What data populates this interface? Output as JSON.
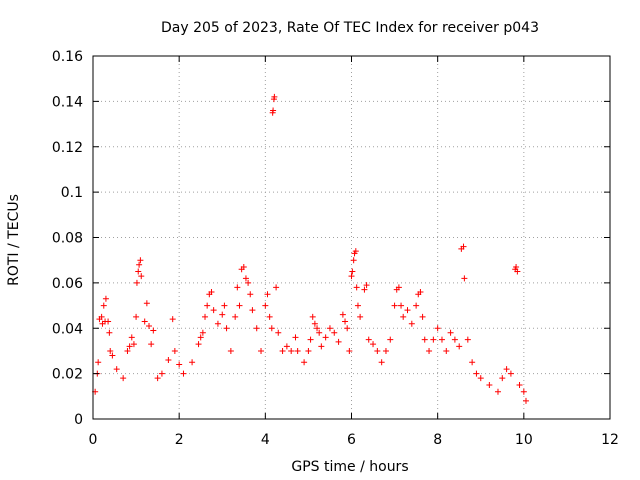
{
  "chart_data": {
    "type": "scatter",
    "title": "Day 205 of 2023, Rate Of TEC Index for receiver p043",
    "xlabel": "GPS time / hours",
    "ylabel": "ROTI / TECUs",
    "xlim": [
      0,
      12
    ],
    "ylim": [
      0,
      0.16
    ],
    "xticks": [
      0,
      2,
      4,
      6,
      8,
      10,
      12
    ],
    "xtick_labels": [
      "0",
      "2",
      "4",
      "6",
      "8",
      "10",
      "12"
    ],
    "yticks": [
      0,
      0.02,
      0.04,
      0.06,
      0.08,
      0.1,
      0.12,
      0.14,
      0.16
    ],
    "ytick_labels": [
      "0",
      "0.02",
      "0.04",
      "0.06",
      "0.08",
      "0.1",
      "0.12",
      "0.14",
      "0.16"
    ],
    "grid": true,
    "marker": "+",
    "color": "#ff0000",
    "series": [
      {
        "name": "ROTI",
        "points": [
          [
            0.05,
            0.012
          ],
          [
            0.1,
            0.02
          ],
          [
            0.12,
            0.025
          ],
          [
            0.15,
            0.044
          ],
          [
            0.2,
            0.045
          ],
          [
            0.22,
            0.042
          ],
          [
            0.25,
            0.05
          ],
          [
            0.28,
            0.043
          ],
          [
            0.3,
            0.053
          ],
          [
            0.35,
            0.043
          ],
          [
            0.38,
            0.038
          ],
          [
            0.4,
            0.03
          ],
          [
            0.45,
            0.028
          ],
          [
            0.55,
            0.022
          ],
          [
            0.7,
            0.018
          ],
          [
            0.8,
            0.03
          ],
          [
            0.85,
            0.032
          ],
          [
            0.9,
            0.036
          ],
          [
            0.95,
            0.033
          ],
          [
            1.0,
            0.045
          ],
          [
            1.02,
            0.06
          ],
          [
            1.05,
            0.065
          ],
          [
            1.07,
            0.068
          ],
          [
            1.1,
            0.07
          ],
          [
            1.12,
            0.063
          ],
          [
            1.2,
            0.043
          ],
          [
            1.25,
            0.051
          ],
          [
            1.3,
            0.041
          ],
          [
            1.35,
            0.033
          ],
          [
            1.4,
            0.039
          ],
          [
            1.5,
            0.018
          ],
          [
            1.6,
            0.02
          ],
          [
            1.75,
            0.026
          ],
          [
            1.85,
            0.044
          ],
          [
            1.9,
            0.03
          ],
          [
            2.0,
            0.024
          ],
          [
            2.1,
            0.02
          ],
          [
            2.3,
            0.025
          ],
          [
            2.45,
            0.033
          ],
          [
            2.5,
            0.036
          ],
          [
            2.55,
            0.038
          ],
          [
            2.6,
            0.045
          ],
          [
            2.65,
            0.05
          ],
          [
            2.7,
            0.055
          ],
          [
            2.75,
            0.056
          ],
          [
            2.8,
            0.048
          ],
          [
            2.9,
            0.042
          ],
          [
            3.0,
            0.046
          ],
          [
            3.05,
            0.05
          ],
          [
            3.1,
            0.04
          ],
          [
            3.2,
            0.03
          ],
          [
            3.3,
            0.045
          ],
          [
            3.35,
            0.058
          ],
          [
            3.4,
            0.05
          ],
          [
            3.45,
            0.066
          ],
          [
            3.5,
            0.067
          ],
          [
            3.55,
            0.062
          ],
          [
            3.6,
            0.06
          ],
          [
            3.65,
            0.055
          ],
          [
            3.7,
            0.048
          ],
          [
            3.8,
            0.04
          ],
          [
            3.9,
            0.03
          ],
          [
            4.0,
            0.05
          ],
          [
            4.05,
            0.055
          ],
          [
            4.1,
            0.045
          ],
          [
            4.15,
            0.04
          ],
          [
            4.17,
            0.135
          ],
          [
            4.18,
            0.136
          ],
          [
            4.2,
            0.141
          ],
          [
            4.21,
            0.142
          ],
          [
            4.25,
            0.058
          ],
          [
            4.3,
            0.038
          ],
          [
            4.4,
            0.03
          ],
          [
            4.5,
            0.032
          ],
          [
            4.6,
            0.03
          ],
          [
            4.7,
            0.036
          ],
          [
            4.75,
            0.03
          ],
          [
            4.9,
            0.025
          ],
          [
            5.0,
            0.03
          ],
          [
            5.05,
            0.035
          ],
          [
            5.1,
            0.045
          ],
          [
            5.15,
            0.042
          ],
          [
            5.2,
            0.04
          ],
          [
            5.25,
            0.038
          ],
          [
            5.3,
            0.032
          ],
          [
            5.4,
            0.036
          ],
          [
            5.5,
            0.04
          ],
          [
            5.6,
            0.038
          ],
          [
            5.7,
            0.034
          ],
          [
            5.8,
            0.046
          ],
          [
            5.85,
            0.043
          ],
          [
            5.9,
            0.04
          ],
          [
            5.95,
            0.03
          ],
          [
            6.0,
            0.063
          ],
          [
            6.02,
            0.065
          ],
          [
            6.05,
            0.07
          ],
          [
            6.07,
            0.073
          ],
          [
            6.1,
            0.074
          ],
          [
            6.12,
            0.058
          ],
          [
            6.15,
            0.05
          ],
          [
            6.2,
            0.045
          ],
          [
            6.3,
            0.057
          ],
          [
            6.35,
            0.059
          ],
          [
            6.4,
            0.035
          ],
          [
            6.5,
            0.033
          ],
          [
            6.6,
            0.03
          ],
          [
            6.7,
            0.025
          ],
          [
            6.8,
            0.03
          ],
          [
            6.9,
            0.035
          ],
          [
            7.0,
            0.05
          ],
          [
            7.05,
            0.057
          ],
          [
            7.1,
            0.058
          ],
          [
            7.15,
            0.05
          ],
          [
            7.2,
            0.045
          ],
          [
            7.3,
            0.048
          ],
          [
            7.4,
            0.042
          ],
          [
            7.5,
            0.05
          ],
          [
            7.55,
            0.055
          ],
          [
            7.6,
            0.056
          ],
          [
            7.65,
            0.045
          ],
          [
            7.7,
            0.035
          ],
          [
            7.8,
            0.03
          ],
          [
            7.9,
            0.035
          ],
          [
            8.0,
            0.04
          ],
          [
            8.1,
            0.035
          ],
          [
            8.2,
            0.03
          ],
          [
            8.3,
            0.038
          ],
          [
            8.4,
            0.035
          ],
          [
            8.5,
            0.032
          ],
          [
            8.55,
            0.075
          ],
          [
            8.6,
            0.076
          ],
          [
            8.62,
            0.062
          ],
          [
            8.7,
            0.035
          ],
          [
            8.8,
            0.025
          ],
          [
            8.9,
            0.02
          ],
          [
            9.0,
            0.018
          ],
          [
            9.2,
            0.015
          ],
          [
            9.4,
            0.012
          ],
          [
            9.5,
            0.018
          ],
          [
            9.6,
            0.022
          ],
          [
            9.7,
            0.02
          ],
          [
            9.8,
            0.066
          ],
          [
            9.82,
            0.067
          ],
          [
            9.85,
            0.065
          ],
          [
            9.9,
            0.015
          ],
          [
            10.0,
            0.012
          ],
          [
            10.05,
            0.008
          ]
        ]
      }
    ]
  }
}
